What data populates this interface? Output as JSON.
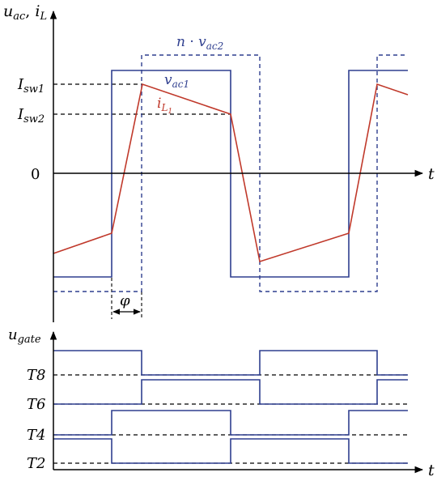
{
  "colors": {
    "voltage": "#2f3f8f",
    "current": "#c0392b",
    "axis": "#000000",
    "reference": "#000000"
  },
  "top_plot": {
    "y_axis_label": {
      "main": "u",
      "main_sub": "ac",
      "sep": ", ",
      "second": "i",
      "second_sub": "L"
    },
    "x_axis_label": "t",
    "zero_label": "0",
    "isw1_label": {
      "main": "I",
      "sub": "sw1"
    },
    "isw2_label": {
      "main": "I",
      "sub": "sw2"
    },
    "nvac2_label": {
      "n": "n",
      "dot": " · ",
      "v": "v",
      "sub": "ac2"
    },
    "vac1_label": {
      "v": "v",
      "sub": "ac1"
    },
    "il1_label": {
      "i": "i",
      "sub": "L",
      "subsub": "1"
    },
    "phi_label": "φ"
  },
  "bottom_plot": {
    "y_axis_label": {
      "main": "u",
      "sub": "gate"
    },
    "x_axis_label": "t",
    "gates": [
      {
        "name": "T8"
      },
      {
        "name": "T6"
      },
      {
        "name": "T4"
      },
      {
        "name": "T2"
      }
    ]
  }
}
